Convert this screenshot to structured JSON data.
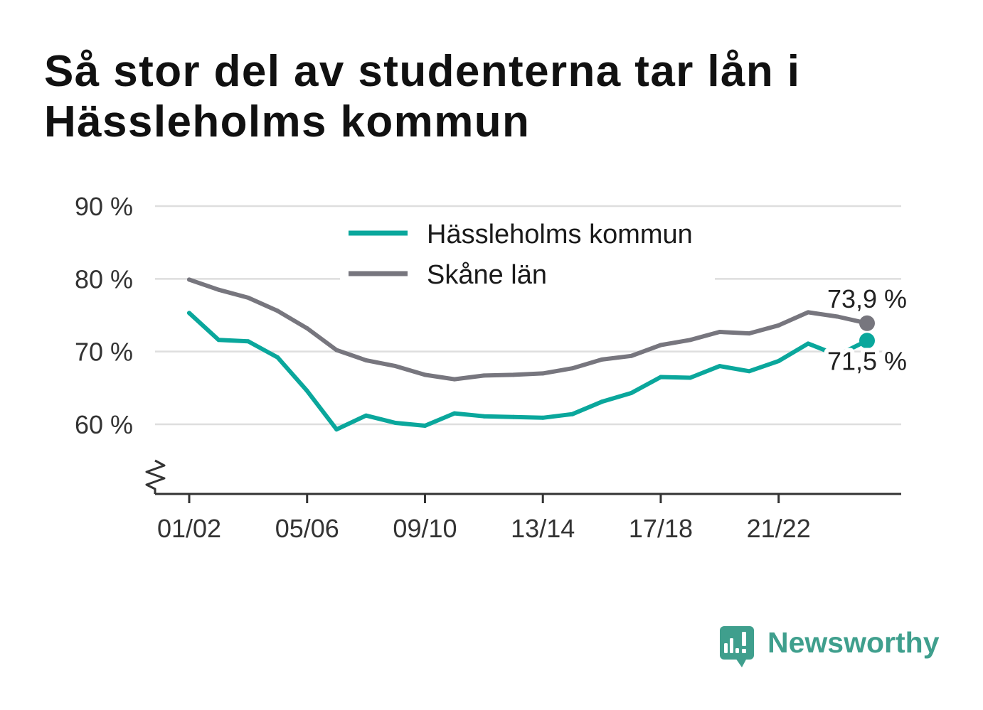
{
  "chart_data": {
    "type": "line",
    "title": "Så stor del av studenterna tar lån i Hässleholms kommun",
    "x_ticks": [
      "01/02",
      "05/06",
      "09/10",
      "13/14",
      "17/18",
      "21/22"
    ],
    "y_ticks": [
      {
        "value": 90,
        "label": "90 %"
      },
      {
        "value": 80,
        "label": "80 %"
      },
      {
        "value": 70,
        "label": "70 %"
      },
      {
        "value": 60,
        "label": "60 %"
      }
    ],
    "ylim": [
      50,
      90
    ],
    "y_axis_break": true,
    "grid": true,
    "legend": "top-center",
    "series": [
      {
        "name": "Hässleholms kommun",
        "color": "#0aa79c",
        "values": [
          75.3,
          71.6,
          71.4,
          69.2,
          64.6,
          59.3,
          61.2,
          60.2,
          59.8,
          61.5,
          61.1,
          61.0,
          60.9,
          61.4,
          63.1,
          64.3,
          66.5,
          66.4,
          68.0,
          67.3,
          68.7,
          71.1,
          69.5,
          71.5
        ],
        "end_label": "71,5 %"
      },
      {
        "name": "Skåne län",
        "color": "#77767e",
        "values": [
          79.9,
          78.5,
          77.4,
          75.6,
          73.2,
          70.2,
          68.8,
          68.0,
          66.8,
          66.2,
          66.7,
          66.8,
          67.0,
          67.7,
          68.9,
          69.4,
          70.9,
          71.6,
          72.7,
          72.5,
          73.6,
          75.4,
          74.8,
          73.9
        ],
        "end_label": "73,9 %"
      }
    ]
  },
  "branding": {
    "name": "Newsworthy",
    "icon": "newsworthy-bar-chart-bubble-icon",
    "color": "#3f9f8d"
  }
}
